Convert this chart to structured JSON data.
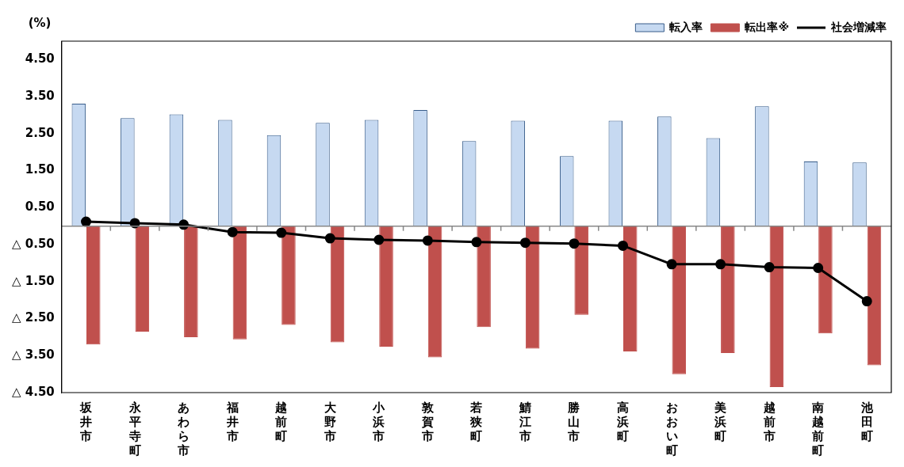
{
  "chart_data": {
    "type": "bar",
    "ylabel": "(%)",
    "categories": [
      "坂井市",
      "永平寺町",
      "あわら市",
      "福井市",
      "越前町",
      "大野市",
      "小浜市",
      "敦賀市",
      "若狭町",
      "鯖江市",
      "勝山市",
      "高浜町",
      "おおい町",
      "美浜町",
      "越前市",
      "南越前町",
      "池田町"
    ],
    "series": [
      {
        "name": "転入率",
        "color": "#c6d9f1",
        "values": [
          3.31,
          2.92,
          3.02,
          2.87,
          2.46,
          2.79,
          2.87,
          3.14,
          2.3,
          2.85,
          1.89,
          2.85,
          2.96,
          2.38,
          3.24,
          1.75,
          1.72
        ]
      },
      {
        "name": "転出率※",
        "color": "#c0504d",
        "values": [
          -3.2,
          -2.85,
          -3.0,
          -3.06,
          -2.67,
          -3.14,
          -3.26,
          -3.55,
          -2.73,
          -3.31,
          -2.4,
          -3.39,
          -4.0,
          -3.43,
          -4.35,
          -2.9,
          -3.76
        ]
      },
      {
        "name": "社会増減率",
        "type": "line",
        "color": "#000000",
        "values": [
          0.12,
          0.08,
          0.04,
          -0.16,
          -0.18,
          -0.33,
          -0.37,
          -0.39,
          -0.43,
          -0.45,
          -0.47,
          -0.53,
          -1.03,
          -1.03,
          -1.11,
          -1.13,
          -2.03
        ]
      }
    ],
    "ylim": [
      -4.5,
      5.0
    ],
    "yticks": [
      {
        "value": 4.5,
        "label": "4.50"
      },
      {
        "value": 3.5,
        "label": "3.50"
      },
      {
        "value": 2.5,
        "label": "2.50"
      },
      {
        "value": 1.5,
        "label": "1.50"
      },
      {
        "value": 0.5,
        "label": "0.50"
      },
      {
        "value": -0.5,
        "label": "△ 0.50"
      },
      {
        "value": -1.5,
        "label": "△ 1.50"
      },
      {
        "value": -2.5,
        "label": "△ 2.50"
      },
      {
        "value": -3.5,
        "label": "△ 3.50"
      },
      {
        "value": -4.5,
        "label": "△ 4.50"
      }
    ],
    "grid": false,
    "legend": "top right",
    "marker": "circle",
    "line_style": "solid"
  }
}
